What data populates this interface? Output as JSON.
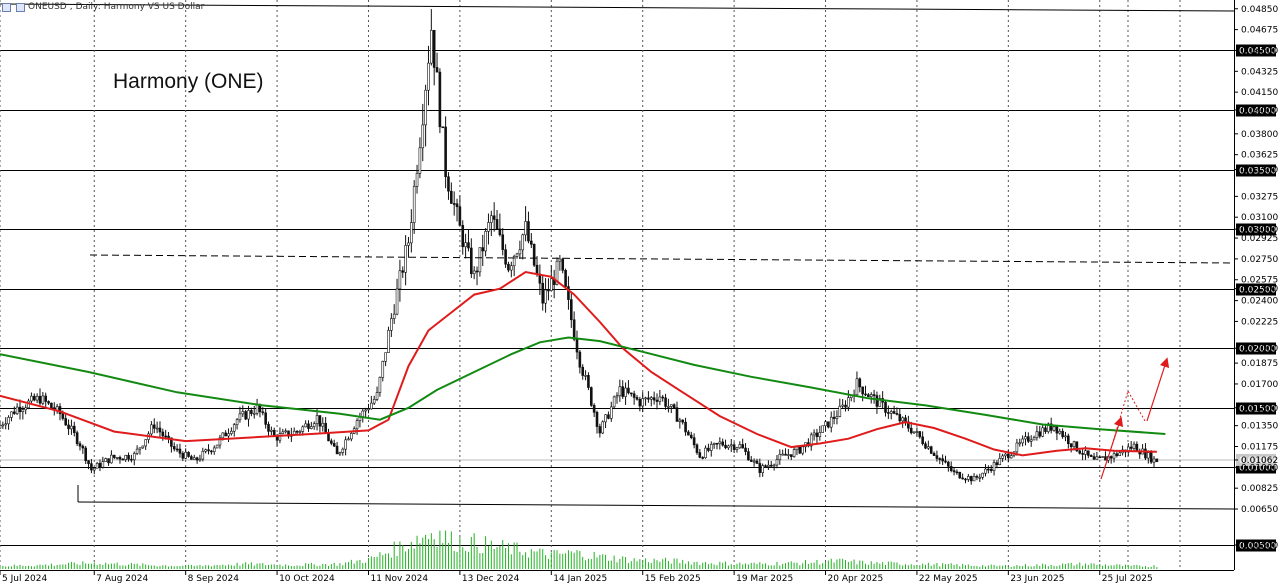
{
  "header": {
    "symbol": "ONEUSD",
    "timeframe": "Daily:",
    "description": "Harmony VS US Dollar"
  },
  "annotation_title": "Harmony (ONE)",
  "colors": {
    "candle": "#111111",
    "sma_fast": "#e01b1b",
    "sma_slow": "#128a12",
    "volume": "#22b122",
    "projection": "#e01b1b",
    "grid": "#555555"
  },
  "chart_data": {
    "type": "line",
    "title": "",
    "ylim": [
      0.00625,
      0.0489
    ],
    "y_ticks": [
      "0.04850",
      "0.04675",
      "0.04500",
      "0.04325",
      "0.04150",
      "0.04000",
      "0.03800",
      "0.03625",
      "0.03500",
      "0.03275",
      "0.03100",
      "0.03000",
      "0.02925",
      "0.02750",
      "0.02575",
      "0.02500",
      "0.02400",
      "0.02225",
      "0.02000",
      "0.01875",
      "0.01700",
      "0.01500",
      "0.01350",
      "0.01175",
      "0.01062",
      "0.01000",
      "0.00825",
      "0.00650",
      "0.00500"
    ],
    "x_ticks": [
      "5 Jul 2024",
      "7 Aug 2024",
      "8 Sep 2024",
      "10 Oct 2024",
      "11 Nov 2024",
      "13 Dec 2024",
      "14 Jan 2025",
      "15 Feb 2025",
      "19 Mar 2025",
      "20 Apr 2025",
      "22 May 2025",
      "23 Jun 2025",
      "25 Jul 2025"
    ],
    "horizontal_levels": [
      "0.04500",
      "0.04000",
      "0.03500",
      "0.03000",
      "0.02500",
      "0.02000",
      "0.01500",
      "0.01000",
      "0.00500"
    ],
    "current_price": "0.01062",
    "price_series": {
      "name": "",
      "points": [
        [
          "2024-07-05",
          0.0133
        ],
        [
          "2024-07-12",
          0.015
        ],
        [
          "2024-07-20",
          0.0158
        ],
        [
          "2024-07-27",
          0.0145
        ],
        [
          "2024-08-03",
          0.012
        ],
        [
          "2024-08-07",
          0.0098
        ],
        [
          "2024-08-14",
          0.0108
        ],
        [
          "2024-08-22",
          0.011
        ],
        [
          "2024-08-29",
          0.0136
        ],
        [
          "2024-09-05",
          0.0115
        ],
        [
          "2024-09-12",
          0.0105
        ],
        [
          "2024-09-20",
          0.012
        ],
        [
          "2024-09-27",
          0.014
        ],
        [
          "2024-10-04",
          0.015
        ],
        [
          "2024-10-10",
          0.0125
        ],
        [
          "2024-10-18",
          0.013
        ],
        [
          "2024-10-25",
          0.0142
        ],
        [
          "2024-11-01",
          0.011
        ],
        [
          "2024-11-08",
          0.014
        ],
        [
          "2024-11-15",
          0.016
        ],
        [
          "2024-11-20",
          0.0225
        ],
        [
          "2024-11-26",
          0.029
        ],
        [
          "2024-12-01",
          0.04
        ],
        [
          "2024-12-04",
          0.047
        ],
        [
          "2024-12-09",
          0.035
        ],
        [
          "2024-12-14",
          0.03
        ],
        [
          "2024-12-19",
          0.026
        ],
        [
          "2024-12-25",
          0.031
        ],
        [
          "2024-12-31",
          0.027
        ],
        [
          "2025-01-06",
          0.03
        ],
        [
          "2025-01-12",
          0.024
        ],
        [
          "2025-01-18",
          0.027
        ],
        [
          "2025-01-25",
          0.019
        ],
        [
          "2025-02-01",
          0.013
        ],
        [
          "2025-02-08",
          0.0165
        ],
        [
          "2025-02-15",
          0.0155
        ],
        [
          "2025-02-22",
          0.016
        ],
        [
          "2025-03-01",
          0.014
        ],
        [
          "2025-03-08",
          0.011
        ],
        [
          "2025-03-15",
          0.012
        ],
        [
          "2025-03-22",
          0.0118
        ],
        [
          "2025-03-29",
          0.0098
        ],
        [
          "2025-04-05",
          0.0108
        ],
        [
          "2025-04-12",
          0.0115
        ],
        [
          "2025-04-20",
          0.0132
        ],
        [
          "2025-04-27",
          0.015
        ],
        [
          "2025-05-02",
          0.017
        ],
        [
          "2025-05-09",
          0.0155
        ],
        [
          "2025-05-16",
          0.0142
        ],
        [
          "2025-05-22",
          0.013
        ],
        [
          "2025-05-29",
          0.0112
        ],
        [
          "2025-06-05",
          0.0095
        ],
        [
          "2025-06-12",
          0.009
        ],
        [
          "2025-06-19",
          0.0102
        ],
        [
          "2025-06-26",
          0.0115
        ],
        [
          "2025-07-03",
          0.0128
        ],
        [
          "2025-07-10",
          0.0135
        ],
        [
          "2025-07-17",
          0.0118
        ],
        [
          "2025-07-24",
          0.0105
        ],
        [
          "2025-07-31",
          0.011
        ],
        [
          "2025-08-07",
          0.0118
        ],
        [
          "2025-08-14",
          0.0106
        ]
      ]
    },
    "series": [
      {
        "name": "",
        "color": "#e01b1b",
        "points": [
          [
            "2024-07-05",
            0.016
          ],
          [
            "2024-07-26",
            0.0147
          ],
          [
            "2024-08-14",
            0.013
          ],
          [
            "2024-09-08",
            0.0122
          ],
          [
            "2024-09-30",
            0.0125
          ],
          [
            "2024-10-22",
            0.0128
          ],
          [
            "2024-11-11",
            0.0131
          ],
          [
            "2024-11-18",
            0.014
          ],
          [
            "2024-11-25",
            0.0185
          ],
          [
            "2024-12-02",
            0.0215
          ],
          [
            "2024-12-10",
            0.023
          ],
          [
            "2024-12-18",
            0.0245
          ],
          [
            "2024-12-27",
            0.025
          ],
          [
            "2025-01-05",
            0.0264
          ],
          [
            "2025-01-14",
            0.026
          ],
          [
            "2025-01-22",
            0.0245
          ],
          [
            "2025-01-31",
            0.0222
          ],
          [
            "2025-02-08",
            0.02
          ],
          [
            "2025-02-18",
            0.018
          ],
          [
            "2025-03-01",
            0.0163
          ],
          [
            "2025-03-14",
            0.0143
          ],
          [
            "2025-03-27",
            0.0128
          ],
          [
            "2025-04-08",
            0.0117
          ],
          [
            "2025-04-18",
            0.012
          ],
          [
            "2025-04-28",
            0.0124
          ],
          [
            "2025-05-08",
            0.0132
          ],
          [
            "2025-05-18",
            0.0138
          ],
          [
            "2025-05-28",
            0.0133
          ],
          [
            "2025-06-08",
            0.0124
          ],
          [
            "2025-06-18",
            0.0115
          ],
          [
            "2025-06-28",
            0.011
          ],
          [
            "2025-07-10",
            0.0114
          ],
          [
            "2025-07-20",
            0.0116
          ],
          [
            "2025-07-30",
            0.0114
          ],
          [
            "2025-08-14",
            0.0113
          ]
        ]
      },
      {
        "name": "",
        "color": "#128a12",
        "points": [
          [
            "2024-07-05",
            0.0195
          ],
          [
            "2024-08-05",
            0.018
          ],
          [
            "2024-09-05",
            0.0163
          ],
          [
            "2024-10-05",
            0.0152
          ],
          [
            "2024-11-01",
            0.0145
          ],
          [
            "2024-11-15",
            0.014
          ],
          [
            "2024-11-25",
            0.015
          ],
          [
            "2024-12-05",
            0.0165
          ],
          [
            "2024-12-18",
            0.018
          ],
          [
            "2024-12-31",
            0.0195
          ],
          [
            "2025-01-10",
            0.0205
          ],
          [
            "2025-01-20",
            0.0209
          ],
          [
            "2025-01-31",
            0.0206
          ],
          [
            "2025-02-15",
            0.0197
          ],
          [
            "2025-03-05",
            0.0186
          ],
          [
            "2025-03-25",
            0.0176
          ],
          [
            "2025-04-15",
            0.0167
          ],
          [
            "2025-05-05",
            0.0158
          ],
          [
            "2025-05-25",
            0.0152
          ],
          [
            "2025-06-15",
            0.0144
          ],
          [
            "2025-07-05",
            0.0136
          ],
          [
            "2025-07-25",
            0.0132
          ],
          [
            "2025-08-17",
            0.0128
          ]
        ]
      }
    ],
    "volume": [
      [
        "2024-07-05",
        3
      ],
      [
        "2024-07-20",
        4
      ],
      [
        "2024-08-07",
        6
      ],
      [
        "2024-08-25",
        4
      ],
      [
        "2024-09-10",
        3
      ],
      [
        "2024-09-28",
        5
      ],
      [
        "2024-10-15",
        4
      ],
      [
        "2024-11-01",
        5
      ],
      [
        "2024-11-12",
        10
      ],
      [
        "2024-11-22",
        22
      ],
      [
        "2024-11-28",
        30
      ],
      [
        "2024-12-04",
        38
      ],
      [
        "2024-12-10",
        28
      ],
      [
        "2024-12-18",
        26
      ],
      [
        "2024-12-26",
        22
      ],
      [
        "2025-01-05",
        18
      ],
      [
        "2025-01-14",
        14
      ],
      [
        "2025-01-22",
        16
      ],
      [
        "2025-02-01",
        12
      ],
      [
        "2025-02-12",
        9
      ],
      [
        "2025-02-25",
        8
      ],
      [
        "2025-03-10",
        6
      ],
      [
        "2025-03-25",
        5
      ],
      [
        "2025-04-10",
        6
      ],
      [
        "2025-04-25",
        8
      ],
      [
        "2025-05-05",
        6
      ],
      [
        "2025-05-20",
        5
      ],
      [
        "2025-06-05",
        4
      ],
      [
        "2025-06-20",
        3
      ],
      [
        "2025-07-05",
        4
      ],
      [
        "2025-07-20",
        5
      ],
      [
        "2025-08-05",
        3
      ],
      [
        "2025-08-14",
        3
      ]
    ]
  }
}
